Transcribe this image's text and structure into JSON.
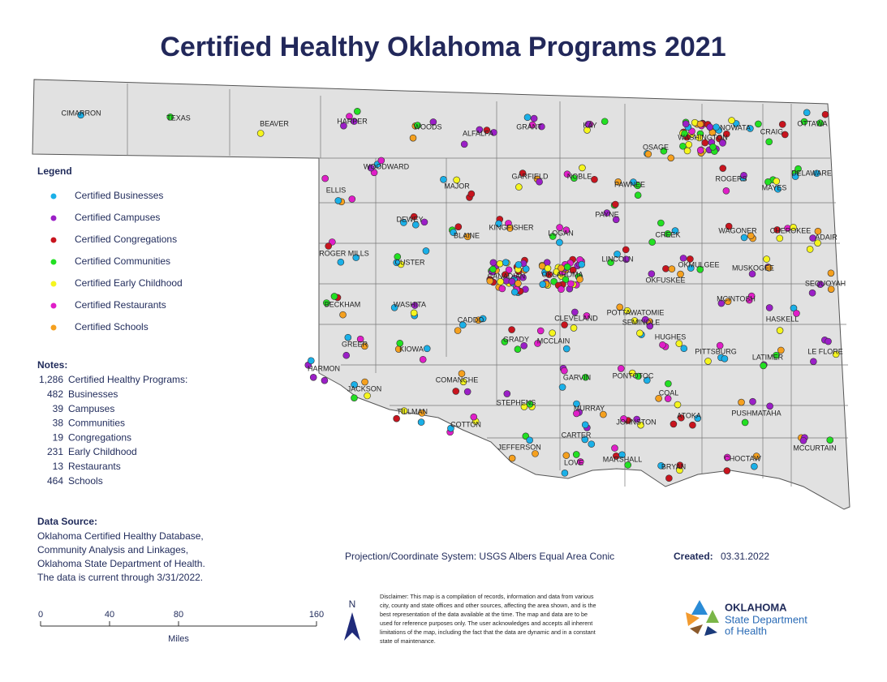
{
  "title": "Certified Healthy Oklahoma Programs 2021",
  "legend": {
    "title": "Legend",
    "items": [
      {
        "label": "Certified Businesses",
        "color": "#1ab0e8"
      },
      {
        "label": "Certified Campuses",
        "color": "#9b1fc7"
      },
      {
        "label": "Certified Congregations",
        "color": "#c8141e"
      },
      {
        "label": "Certified Communities",
        "color": "#22e022"
      },
      {
        "label": "Certified Early Childhood",
        "color": "#f5f51e"
      },
      {
        "label": "Certified Restaurants",
        "color": "#e01ec8"
      },
      {
        "label": "Certified Schools",
        "color": "#f5a01e"
      }
    ]
  },
  "notes": {
    "title": "Notes:",
    "rows": [
      {
        "count": "1,286",
        "label": "Certified Healthy Programs:"
      },
      {
        "count": "482",
        "label": "Businesses"
      },
      {
        "count": "39",
        "label": "Campuses"
      },
      {
        "count": "38",
        "label": "Communities"
      },
      {
        "count": "19",
        "label": "Congregations"
      },
      {
        "count": "231",
        "label": "Early Childhood"
      },
      {
        "count": "13",
        "label": "Restaurants"
      },
      {
        "count": "464",
        "label": "Schools"
      }
    ]
  },
  "data_source": {
    "title": "Data Source:",
    "lines": [
      "Oklahoma Certified Healthy Database,",
      "Community Analysis and Linkages,",
      "Oklahoma State Department of Health.",
      "The data is current through 3/31/2022."
    ]
  },
  "projection": "Projection/Coordinate System: USGS Albers Equal Area Conic",
  "created": {
    "label": "Created:",
    "value": "03.31.2022"
  },
  "disclaimer": [
    "Disclaimer: This map is a compilation of records, information and data from various",
    "city, county and state offices and other sources, affecting the area shown, and is the",
    "best representation of the data available at the time.  The map and data are to be",
    "used for reference purposes only.  The user acknowledges and accepts all inherent",
    "limitations of the map, including the fact that the data are dynamic and in a constant",
    "state of maintenance."
  ],
  "scale": {
    "ticks": [
      "0",
      "40",
      "80",
      "160"
    ],
    "unit": "Miles"
  },
  "north": "N",
  "logo": [
    "OKLAHOMA",
    "State Department",
    "of Health"
  ],
  "counties": [
    "CIMARRON",
    "TEXAS",
    "BEAVER",
    "HARPER",
    "WOODS",
    "ALFALFA",
    "GRANT",
    "KAY",
    "OSAGE",
    "WASHINGTON",
    "NOWATA",
    "CRAIG",
    "OTTAWA",
    "WOODWARD",
    "MAJOR",
    "GARFIELD",
    "NOBLE",
    "PAWNEE",
    "ROGERS",
    "MAYES",
    "DELAWARE",
    "ELLIS",
    "DEWEY",
    "BLAINE",
    "KINGFISHER",
    "LOGAN",
    "PAYNE",
    "CREEK",
    "WAGONER",
    "CHEROKEE",
    "ADAIR",
    "ROGER MILLS",
    "CUSTER",
    "CANADIAN",
    "OKLAHOMA",
    "LINCOLN",
    "OKMULGEE",
    "MUSKOGEE",
    "SEQUOYAH",
    "BECKHAM",
    "WASHITA",
    "CADDO",
    "CLEVELAND",
    "POTTAWATOMIE",
    "SEMINOLE",
    "OKFUSKEE",
    "MCINTOSH",
    "HASKELL",
    "HUGHES",
    "GRADY",
    "MCCLAIN",
    "GREER",
    "KIOWA",
    "PITTSBURG",
    "LATIMER",
    "LE FLORE",
    "HARMON",
    "JACKSON",
    "COMANCHE",
    "GARVIN",
    "PONTOTOC",
    "COAL",
    "TILLMAN",
    "COTTON",
    "STEPHENS",
    "MURRAY",
    "ATOKA",
    "PUSHMATAHA",
    "JOHNSTON",
    "MCCURTAIN",
    "JEFFERSON",
    "CARTER",
    "LOVE",
    "MARSHALL",
    "BRYAN",
    "CHOCTAW"
  ]
}
